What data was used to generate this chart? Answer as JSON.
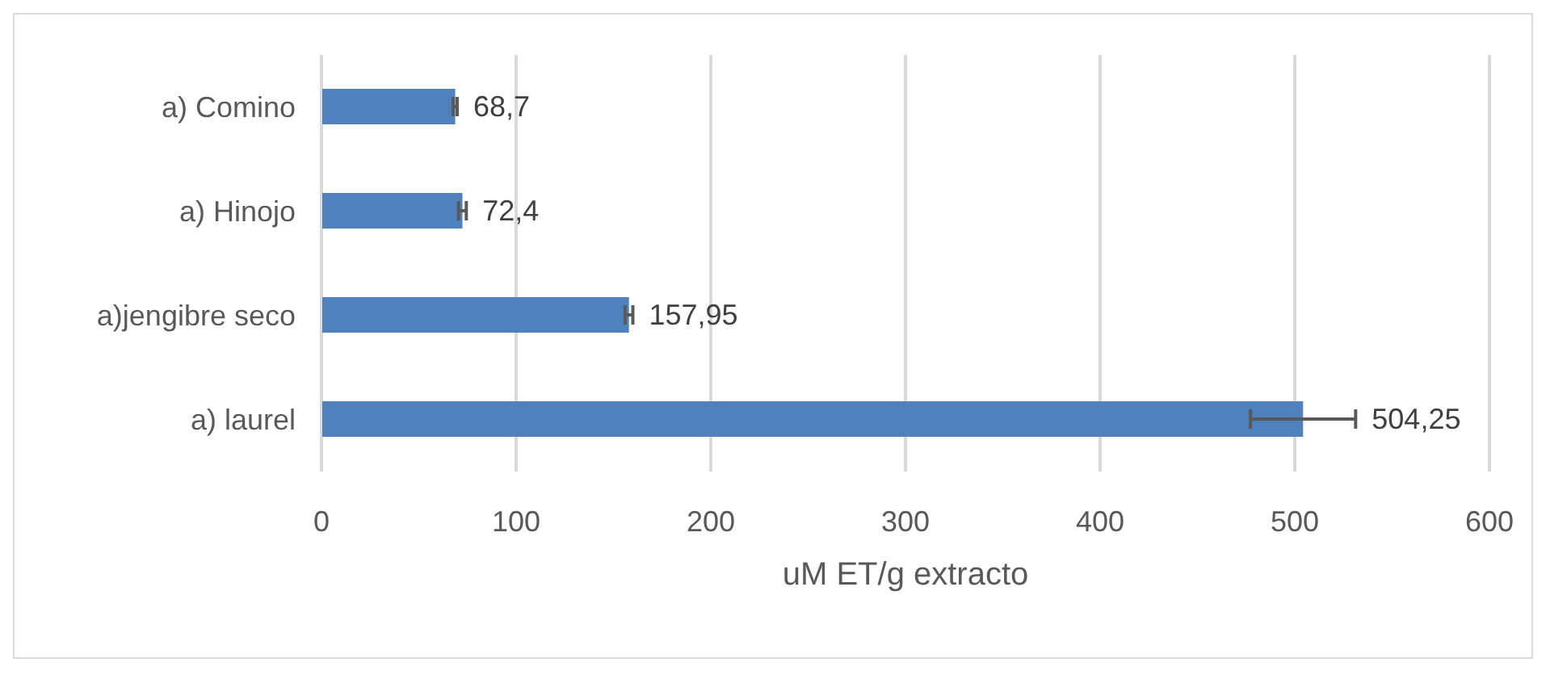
{
  "chart_data": {
    "type": "bar",
    "orientation": "horizontal",
    "xlabel": "uM ET/g  extracto",
    "categories": [
      "a) Comino",
      "a) Hinojo",
      "a)jengibre seco",
      "a) laurel"
    ],
    "values": [
      68.7,
      72.4,
      157.95,
      504.25
    ],
    "errors": [
      1,
      2,
      2,
      27
    ],
    "value_labels": [
      "68,7",
      "72,4",
      "157,95",
      "504,25"
    ],
    "color": "#4f81bd",
    "xlim": [
      0,
      600
    ],
    "xticks": [
      0,
      100,
      200,
      300,
      400,
      500,
      600
    ],
    "grid": "x",
    "legend": false
  }
}
